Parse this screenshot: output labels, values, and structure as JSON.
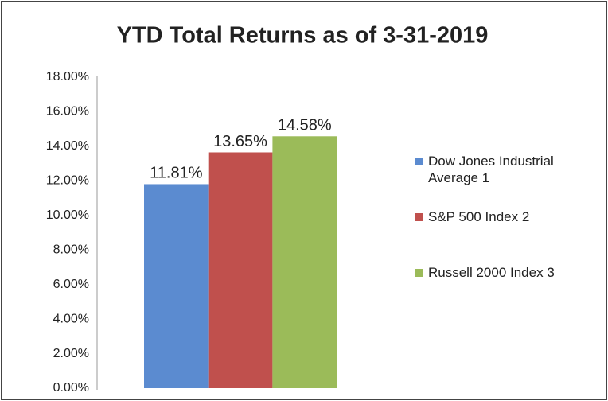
{
  "chart_data": {
    "type": "bar",
    "title": "YTD Total Returns as of 3-31-2019",
    "categories": [
      null
    ],
    "series": [
      {
        "name": "Dow Jones Industrial Average 1",
        "color": "#5b8bd0",
        "values": [
          11.81
        ],
        "value_labels": [
          "11.81%"
        ]
      },
      {
        "name": "S&P 500 Index 2",
        "color": "#c0504d",
        "values": [
          13.65
        ],
        "value_labels": [
          "13.65%"
        ]
      },
      {
        "name": "Russell 2000 Index 3",
        "color": "#9bbb59",
        "values": [
          14.58
        ],
        "value_labels": [
          "14.58%"
        ]
      }
    ],
    "ylim": [
      0,
      18
    ],
    "yticks": [
      {
        "value": 0,
        "label": "0.00%"
      },
      {
        "value": 2,
        "label": "2.00%"
      },
      {
        "value": 4,
        "label": "4.00%"
      },
      {
        "value": 6,
        "label": "6.00%"
      },
      {
        "value": 8,
        "label": "8.00%"
      },
      {
        "value": 10,
        "label": "10.00%"
      },
      {
        "value": 12,
        "label": "12.00%"
      },
      {
        "value": 14,
        "label": "14.00%"
      },
      {
        "value": 16,
        "label": "16.00%"
      },
      {
        "value": 18,
        "label": "18.00%"
      }
    ],
    "grid": false,
    "legend": "right"
  }
}
